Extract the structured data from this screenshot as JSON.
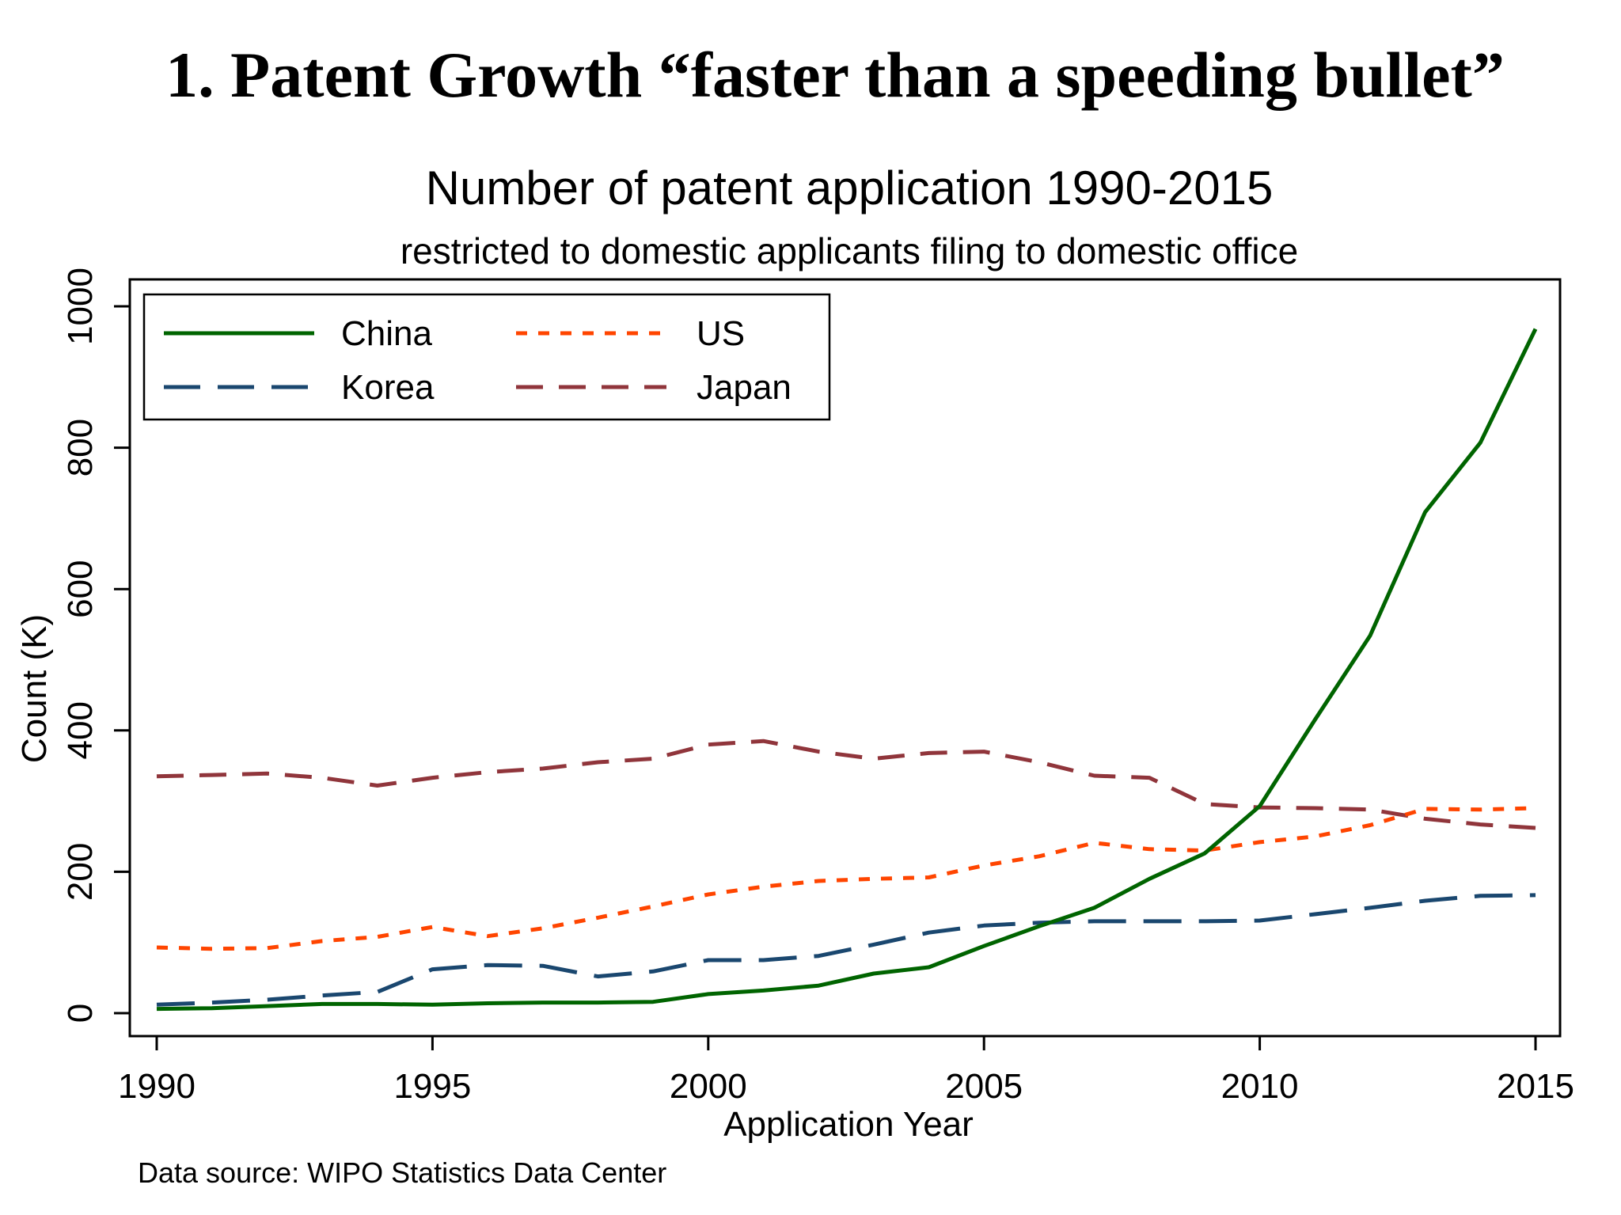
{
  "slide": {
    "title": "1. Patent Growth “faster than a speeding bullet”"
  },
  "chart_data": {
    "type": "line",
    "title": "Number of patent application 1990-2015",
    "subtitle": "restricted to domestic applicants filing to domestic office",
    "xlabel": "Application Year",
    "ylabel": "Count (K)",
    "note": "Data source: WIPO Statistics Data Center",
    "xlim": [
      1990,
      2015
    ],
    "ylim": [
      0,
      1000
    ],
    "x_ticks": [
      1990,
      1995,
      2000,
      2005,
      2010,
      2015
    ],
    "x_tick_labels": [
      "1990",
      "1995",
      "2000",
      "2005",
      "2010",
      "2015"
    ],
    "y_ticks": [
      0,
      200,
      400,
      600,
      800,
      1000
    ],
    "y_tick_labels": [
      "0",
      "200",
      "400",
      "600",
      "800",
      "1000"
    ],
    "grid": false,
    "legend_position": "top-left",
    "x": [
      1990,
      1991,
      1992,
      1993,
      1994,
      1995,
      1996,
      1997,
      1998,
      1999,
      2000,
      2001,
      2002,
      2003,
      2004,
      2005,
      2006,
      2007,
      2008,
      2009,
      2010,
      2011,
      2012,
      2013,
      2014,
      2015
    ],
    "series": [
      {
        "name": "China",
        "color": "#006400",
        "style": "solid",
        "values": [
          6,
          7,
          10,
          13,
          13,
          12,
          14,
          15,
          15,
          16,
          27,
          32,
          39,
          56,
          65,
          95,
          123,
          149,
          190,
          226,
          293,
          415,
          534,
          709,
          807,
          968
        ]
      },
      {
        "name": "US",
        "color": "#ff4500",
        "style": "dotted",
        "values": [
          93,
          91,
          92,
          102,
          108,
          122,
          109,
          120,
          135,
          151,
          168,
          179,
          187,
          190,
          192,
          209,
          222,
          241,
          232,
          230,
          242,
          250,
          266,
          289,
          288,
          290
        ]
      },
      {
        "name": "Korea",
        "color": "#1a476f",
        "style": "long-dash",
        "values": [
          12,
          15,
          19,
          25,
          30,
          62,
          68,
          67,
          52,
          59,
          75,
          75,
          81,
          97,
          114,
          124,
          128,
          130,
          130,
          130,
          131,
          140,
          149,
          159,
          166,
          167
        ]
      },
      {
        "name": "Japan",
        "color": "#90353b",
        "style": "dash",
        "values": [
          335,
          337,
          339,
          333,
          322,
          333,
          341,
          346,
          355,
          360,
          380,
          385,
          370,
          360,
          368,
          370,
          355,
          336,
          333,
          296,
          291,
          290,
          288,
          275,
          267,
          262
        ]
      }
    ]
  }
}
